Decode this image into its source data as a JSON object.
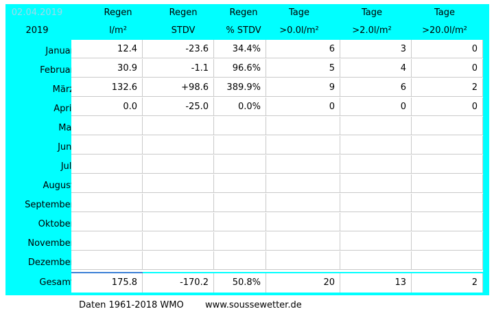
{
  "header": {
    "date": "02.04.2019",
    "year": "2019",
    "columns": [
      {
        "line1": "Regen",
        "line2": "l/m²"
      },
      {
        "line1": "Regen",
        "line2": "STDV"
      },
      {
        "line1": "Regen",
        "line2": "% STDV"
      },
      {
        "line1": "Tage",
        "line2": ">0.0l/m²"
      },
      {
        "line1": "Tage",
        "line2": ">2.0l/m²"
      },
      {
        "line1": "Tage",
        "line2": ">20.0l/m²"
      }
    ]
  },
  "months": [
    {
      "name": "Januar",
      "values": [
        "12.4",
        "-23.6",
        "34.4%",
        "6",
        "3",
        "0"
      ]
    },
    {
      "name": "Februar",
      "values": [
        "30.9",
        "-1.1",
        "96.6%",
        "5",
        "4",
        "0"
      ]
    },
    {
      "name": "März",
      "values": [
        "132.6",
        "+98.6",
        "389.9%",
        "9",
        "6",
        "2"
      ]
    },
    {
      "name": "April",
      "values": [
        "0.0",
        "-25.0",
        "0.0%",
        "0",
        "0",
        "0"
      ]
    },
    {
      "name": "Mai",
      "values": [
        "",
        "",
        "",
        "",
        "",
        ""
      ]
    },
    {
      "name": "Juni",
      "values": [
        "",
        "",
        "",
        "",
        "",
        ""
      ]
    },
    {
      "name": "Juli",
      "values": [
        "",
        "",
        "",
        "",
        "",
        ""
      ]
    },
    {
      "name": "August",
      "values": [
        "",
        "",
        "",
        "",
        "",
        ""
      ]
    },
    {
      "name": "September",
      "values": [
        "",
        "",
        "",
        "",
        "",
        ""
      ]
    },
    {
      "name": "Oktober",
      "values": [
        "",
        "",
        "",
        "",
        "",
        ""
      ]
    },
    {
      "name": "November",
      "values": [
        "",
        "",
        "",
        "",
        "",
        ""
      ]
    },
    {
      "name": "Dezember",
      "values": [
        "",
        "",
        "",
        "",
        "",
        ""
      ]
    }
  ],
  "total": {
    "name": "Gesamt",
    "values": [
      "175.8",
      "-170.2",
      "50.8%",
      "20",
      "13",
      "2"
    ]
  },
  "footer": {
    "source": "Daten 1961-2018 WMO",
    "url": "www.soussewetter.de"
  },
  "colors": {
    "panel": "#00ffff",
    "grid_line": "#c9c9c9",
    "selection_bar": "#3a7fd5"
  }
}
